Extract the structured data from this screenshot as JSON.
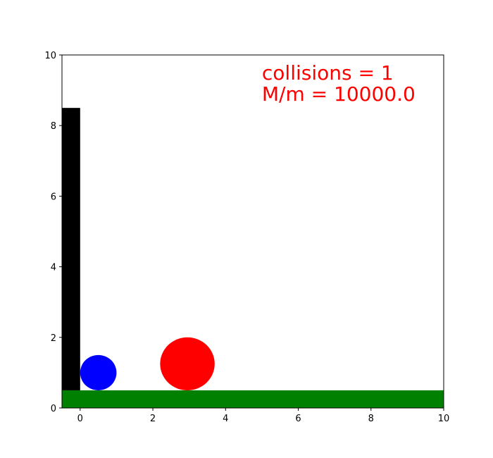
{
  "chart_data": {
    "type": "scatter",
    "title": "",
    "xlabel": "",
    "ylabel": "",
    "xlim": [
      -0.5,
      10
    ],
    "ylim": [
      0,
      10
    ],
    "x_ticks": [
      0,
      2,
      4,
      6,
      8,
      10
    ],
    "y_ticks": [
      0,
      2,
      4,
      6,
      8,
      10
    ],
    "x_tick_labels": [
      "0",
      "2",
      "4",
      "6",
      "8",
      "10"
    ],
    "y_tick_labels": [
      "0",
      "2",
      "4",
      "6",
      "8",
      "10"
    ],
    "grid": false,
    "shapes": {
      "wall": {
        "x": [
          -0.5,
          0
        ],
        "y": [
          0.5,
          8.5
        ],
        "color": "#000000"
      },
      "floor": {
        "x": [
          -0.5,
          10
        ],
        "y": [
          0,
          0.5
        ],
        "color": "#008000"
      },
      "small_ball": {
        "cx": 0.5,
        "cy": 1.0,
        "r": 0.5,
        "color": "#0000ff"
      },
      "big_ball": {
        "cx": 2.95,
        "cy": 1.25,
        "r": 0.75,
        "color": "#ff0000"
      }
    },
    "annotations": [
      {
        "text": "collisions = 1",
        "x": 5.0,
        "y": 9.3,
        "color": "#ff0000"
      },
      {
        "text": "M/m = 10000.0",
        "x": 5.0,
        "y": 8.7,
        "color": "#ff0000"
      }
    ]
  }
}
